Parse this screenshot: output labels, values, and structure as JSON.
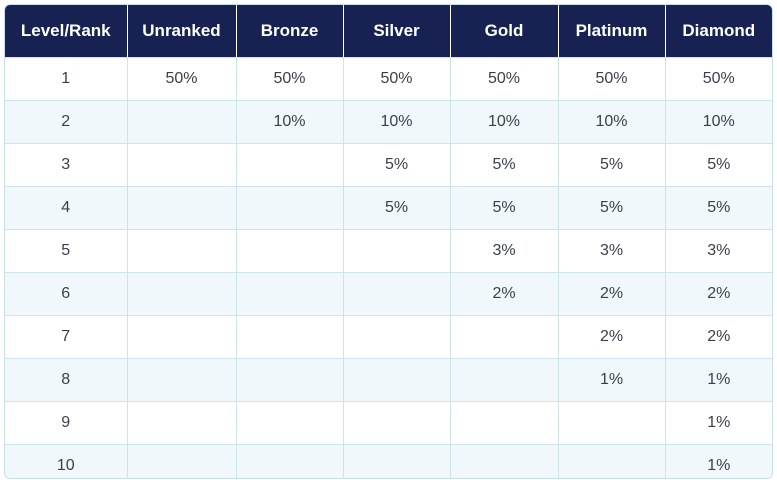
{
  "table": {
    "headers": [
      "Level/Rank",
      "Unranked",
      "Bronze",
      "Silver",
      "Gold",
      "Platinum",
      "Diamond"
    ],
    "rows": [
      [
        "1",
        "50%",
        "50%",
        "50%",
        "50%",
        "50%",
        "50%"
      ],
      [
        "2",
        "",
        "10%",
        "10%",
        "10%",
        "10%",
        "10%"
      ],
      [
        "3",
        "",
        "",
        "5%",
        "5%",
        "5%",
        "5%"
      ],
      [
        "4",
        "",
        "",
        "5%",
        "5%",
        "5%",
        "5%"
      ],
      [
        "5",
        "",
        "",
        "",
        "3%",
        "3%",
        "3%"
      ],
      [
        "6",
        "",
        "",
        "",
        "2%",
        "2%",
        "2%"
      ],
      [
        "7",
        "",
        "",
        "",
        "",
        "2%",
        "2%"
      ],
      [
        "8",
        "",
        "",
        "",
        "",
        "1%",
        "1%"
      ],
      [
        "9",
        "",
        "",
        "",
        "",
        "",
        "1%"
      ],
      [
        "10",
        "",
        "",
        "",
        "",
        "",
        "1%"
      ]
    ]
  },
  "colors": {
    "header_bg": "#172152",
    "header_text": "#ffffff",
    "stripe_bg": "#f1f8fb",
    "border": "#cfe3ea"
  }
}
